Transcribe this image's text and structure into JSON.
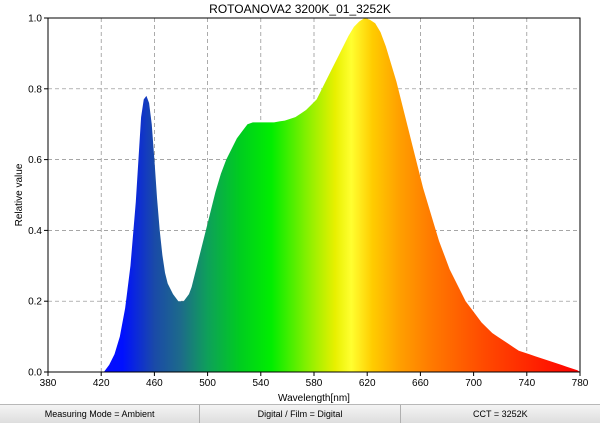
{
  "chart_data": {
    "type": "area",
    "title": "ROTOANOVA2 3200K_01_3252K",
    "xlabel": "Wavelength[nm]",
    "ylabel": "Relative value",
    "xlim": [
      380,
      780
    ],
    "ylim": [
      0,
      1.0
    ],
    "x_ticks": [
      "380",
      "420",
      "460",
      "500",
      "540",
      "580",
      "620",
      "660",
      "700",
      "740",
      "780"
    ],
    "y_ticks": [
      "0.0",
      "0.2",
      "0.4",
      "0.6",
      "0.8",
      "1.0"
    ],
    "grid": true,
    "series": [
      {
        "x": [
          422,
          426,
          430,
          434,
          438,
          442,
          446,
          448,
          450,
          452,
          454,
          456,
          458,
          460,
          462,
          464,
          466,
          468,
          470,
          474,
          478,
          482,
          486,
          488,
          490,
          494,
          498,
          502,
          506,
          510,
          514,
          518,
          522,
          526,
          530,
          534,
          538,
          542,
          546,
          550,
          554,
          558,
          562,
          566,
          570,
          574,
          578,
          582,
          586,
          590,
          594,
          598,
          602,
          606,
          610,
          614,
          618,
          622,
          626,
          630,
          634,
          638,
          642,
          646,
          650,
          654,
          658,
          662,
          666,
          670,
          674,
          678,
          682,
          686,
          690,
          694,
          698,
          702,
          706,
          710,
          714,
          718,
          722,
          726,
          730,
          734,
          738,
          742,
          746,
          750,
          754,
          758,
          762,
          766,
          770,
          774,
          778,
          780
        ],
        "y": [
          0.0,
          0.02,
          0.05,
          0.1,
          0.18,
          0.3,
          0.48,
          0.6,
          0.72,
          0.77,
          0.78,
          0.76,
          0.7,
          0.6,
          0.49,
          0.4,
          0.33,
          0.28,
          0.25,
          0.22,
          0.2,
          0.2,
          0.22,
          0.24,
          0.27,
          0.33,
          0.39,
          0.45,
          0.51,
          0.56,
          0.6,
          0.63,
          0.66,
          0.68,
          0.7,
          0.705,
          0.705,
          0.705,
          0.705,
          0.705,
          0.708,
          0.71,
          0.715,
          0.72,
          0.73,
          0.74,
          0.755,
          0.77,
          0.8,
          0.83,
          0.86,
          0.89,
          0.92,
          0.95,
          0.975,
          0.99,
          1.0,
          0.995,
          0.985,
          0.96,
          0.92,
          0.87,
          0.82,
          0.76,
          0.7,
          0.64,
          0.58,
          0.52,
          0.47,
          0.42,
          0.37,
          0.33,
          0.29,
          0.26,
          0.23,
          0.2,
          0.18,
          0.16,
          0.14,
          0.125,
          0.11,
          0.1,
          0.09,
          0.08,
          0.07,
          0.06,
          0.055,
          0.05,
          0.045,
          0.04,
          0.035,
          0.03,
          0.025,
          0.02,
          0.015,
          0.01,
          0.005,
          0.0
        ]
      }
    ]
  },
  "status": {
    "measuring_mode": "Measuring Mode = Ambient",
    "digital_film": "Digital / Film = Digital",
    "cct": "CCT = 3252K"
  }
}
